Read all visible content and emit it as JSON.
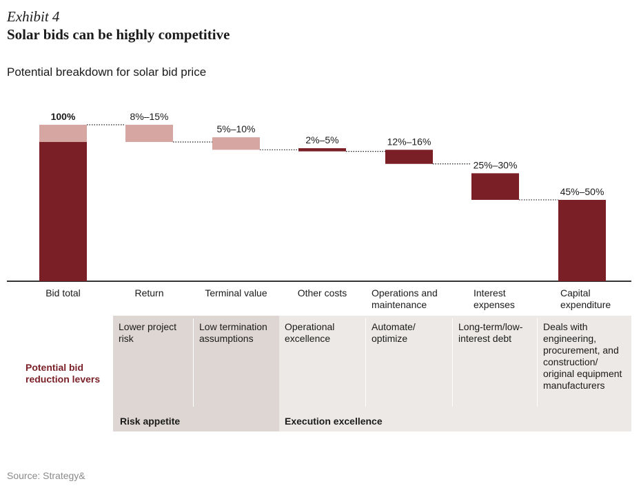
{
  "exhibit": "Exhibit 4",
  "headline": "Solar bids can be highly competitive",
  "subtitle": "Potential breakdown for solar bid price",
  "colors": {
    "dark": "#7b1f26",
    "light": "#d6a6a2",
    "lever_dark_bg": "#ddd6d2",
    "lever_light_bg": "#ece9e6",
    "accent_text": "#7b1f26"
  },
  "chart_data": {
    "type": "bar",
    "subtype": "waterfall",
    "ylim": [
      0,
      100
    ],
    "categories": [
      "Bid total",
      "Return",
      "Terminal value",
      "Other costs",
      "Operations and maintenance",
      "Interest expenses",
      "Capital expenditure"
    ],
    "data_labels": [
      "100%",
      "8%–15%",
      "5%–10%",
      "2%–5%",
      "12%–16%",
      "25%–30%",
      "45%–50%"
    ],
    "bars": [
      {
        "category": "Bid total",
        "kind": "total",
        "value": 100,
        "uncertain_top_share": 11
      },
      {
        "category": "Return",
        "kind": "decrease",
        "low": 8,
        "high": 15,
        "shade": "light"
      },
      {
        "category": "Terminal value",
        "kind": "decrease",
        "low": 5,
        "high": 10,
        "shade": "light"
      },
      {
        "category": "Other costs",
        "kind": "decrease",
        "low": 2,
        "high": 5,
        "shade": "dark"
      },
      {
        "category": "Operations and maintenance",
        "kind": "decrease",
        "low": 12,
        "high": 16,
        "shade": "dark"
      },
      {
        "category": "Interest expenses",
        "kind": "decrease",
        "low": 25,
        "high": 30,
        "shade": "dark"
      },
      {
        "category": "Capital expenditure",
        "kind": "remainder",
        "low": 45,
        "high": 50,
        "shade": "dark"
      }
    ],
    "bar_spans": [
      [
        0,
        100
      ],
      [
        89,
        100
      ],
      [
        84,
        92
      ],
      [
        83,
        85
      ],
      [
        75,
        84
      ],
      [
        52,
        69
      ],
      [
        0,
        52
      ]
    ],
    "connector_levels": [
      100,
      89,
      92,
      85,
      84,
      69,
      52
    ]
  },
  "levers": {
    "row_label": "Potential bid reduction levers",
    "cells": [
      "Lower project risk",
      "Low termination assumptions",
      "Operational excellence",
      "Automate/ optimize",
      "Long-term/low-interest debt",
      "Deals with engineering, procurement, and construction/ original equipment manufacturers"
    ],
    "groups": [
      "Risk appetite",
      "Execution excellence"
    ]
  },
  "source": "Source: Strategy&"
}
